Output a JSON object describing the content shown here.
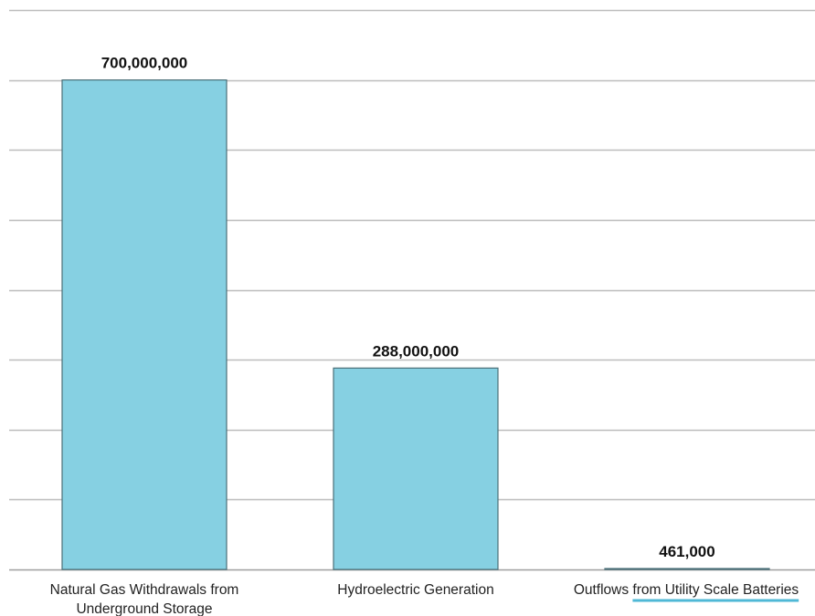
{
  "chart_data": {
    "type": "bar",
    "categories": [
      "Natural Gas Withdrawals from Underground Storage",
      "Hydroelectric Generation",
      "Outflows from Utility Scale Batteries"
    ],
    "category_lines": [
      [
        "Natural Gas Withdrawals from",
        "Underground Storage"
      ],
      [
        "Hydroelectric Generation"
      ],
      [
        "Outflows from Utility Scale Batteries"
      ]
    ],
    "values": [
      700000000,
      288000000,
      461000
    ],
    "data_labels": [
      "700,000,000",
      "288,000,000",
      "461,000"
    ],
    "ylim": [
      0,
      800000000
    ],
    "gridline_step": 100000000,
    "grid": true,
    "bar_color": "#86d0e2",
    "bar_edge_color": "#4a6f78",
    "highlight_color": "#4fb8d6",
    "highlight_text": "from Utility Scale Batteries"
  }
}
